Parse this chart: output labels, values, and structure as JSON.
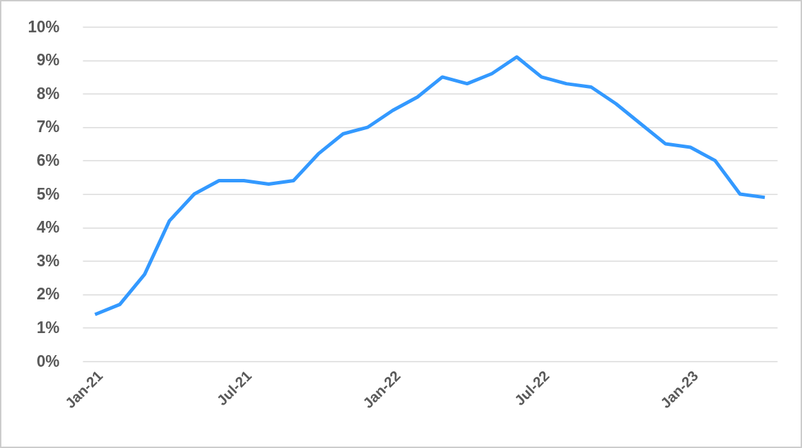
{
  "chart_data": {
    "type": "line",
    "categories": [
      "Jan-21",
      null,
      null,
      null,
      null,
      null,
      "Jul-21",
      null,
      null,
      null,
      null,
      null,
      "Jan-22",
      null,
      null,
      null,
      null,
      null,
      "Jul-22",
      null,
      null,
      null,
      null,
      null,
      "Jan-23",
      null,
      null,
      null
    ],
    "series": [
      {
        "color": "#3399ff",
        "values": [
          1.4,
          1.7,
          2.6,
          4.2,
          5.0,
          5.4,
          5.4,
          5.3,
          5.4,
          6.2,
          6.8,
          7.0,
          7.5,
          7.9,
          8.5,
          8.3,
          8.6,
          9.1,
          8.5,
          8.3,
          8.2,
          7.7,
          7.1,
          6.5,
          6.4,
          6.0,
          5.0,
          4.9
        ]
      }
    ],
    "ylim": [
      0,
      10
    ],
    "yticks": [
      {
        "value": 0,
        "label": "0%"
      },
      {
        "value": 1,
        "label": "1%"
      },
      {
        "value": 2,
        "label": "2%"
      },
      {
        "value": 3,
        "label": "3%"
      },
      {
        "value": 4,
        "label": "4%"
      },
      {
        "value": 5,
        "label": "5%"
      },
      {
        "value": 6,
        "label": "6%"
      },
      {
        "value": 7,
        "label": "7%"
      },
      {
        "value": 8,
        "label": "8%"
      },
      {
        "value": 9,
        "label": "9%"
      },
      {
        "value": 10,
        "label": "10%"
      }
    ],
    "grid": "y",
    "marker": "none",
    "line_style": "solid"
  }
}
